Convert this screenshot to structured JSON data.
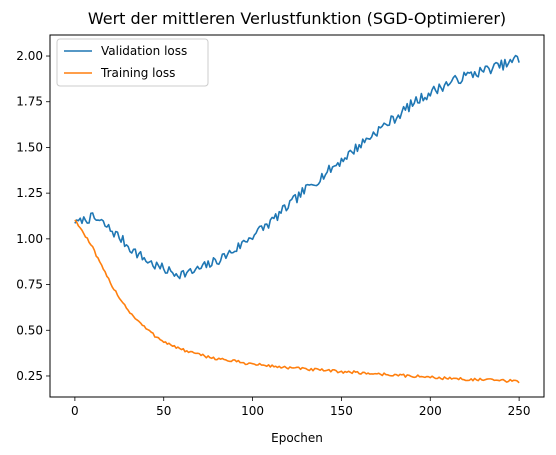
{
  "chart_data": {
    "type": "line",
    "title": "Wert der mittleren Verlustfunktion (SGD-Optimierer)",
    "xlabel": "Epochen",
    "ylabel": "",
    "xlim": [
      -14,
      264
    ],
    "ylim": [
      0.135,
      2.115
    ],
    "xticks": [
      0,
      50,
      100,
      150,
      200,
      250
    ],
    "yticks": [
      0.25,
      0.5,
      0.75,
      1.0,
      1.25,
      1.5,
      1.75,
      2.0
    ],
    "xtick_labels": [
      "0",
      "50",
      "100",
      "150",
      "200",
      "250"
    ],
    "ytick_labels": [
      "0.25",
      "0.50",
      "0.75",
      "1.00",
      "1.25",
      "1.50",
      "1.75",
      "2.00"
    ],
    "grid": false,
    "legend_position": "top-left",
    "series": [
      {
        "name": "Validation loss",
        "color": "#1f77b4",
        "anchors": [
          [
            0,
            1.09
          ],
          [
            5,
            1.105
          ],
          [
            10,
            1.115
          ],
          [
            15,
            1.09
          ],
          [
            20,
            1.05
          ],
          [
            25,
            1.01
          ],
          [
            30,
            0.96
          ],
          [
            35,
            0.92
          ],
          [
            40,
            0.885
          ],
          [
            45,
            0.855
          ],
          [
            50,
            0.835
          ],
          [
            55,
            0.815
          ],
          [
            60,
            0.81
          ],
          [
            65,
            0.815
          ],
          [
            70,
            0.835
          ],
          [
            80,
            0.88
          ],
          [
            90,
            0.94
          ],
          [
            100,
            1.02
          ],
          [
            110,
            1.09
          ],
          [
            120,
            1.18
          ],
          [
            130,
            1.27
          ],
          [
            140,
            1.35
          ],
          [
            150,
            1.43
          ],
          [
            160,
            1.51
          ],
          [
            170,
            1.59
          ],
          [
            180,
            1.66
          ],
          [
            190,
            1.74
          ],
          [
            200,
            1.8
          ],
          [
            210,
            1.85
          ],
          [
            220,
            1.89
          ],
          [
            230,
            1.92
          ],
          [
            240,
            1.95
          ],
          [
            245,
            1.96
          ],
          [
            248,
            1.99
          ],
          [
            250,
            1.965
          ]
        ],
        "noise": 0.028
      },
      {
        "name": "Training loss",
        "color": "#ff7f0e",
        "anchors": [
          [
            0,
            1.105
          ],
          [
            5,
            1.03
          ],
          [
            10,
            0.95
          ],
          [
            15,
            0.85
          ],
          [
            20,
            0.76
          ],
          [
            25,
            0.68
          ],
          [
            30,
            0.61
          ],
          [
            35,
            0.555
          ],
          [
            40,
            0.51
          ],
          [
            45,
            0.47
          ],
          [
            50,
            0.44
          ],
          [
            55,
            0.415
          ],
          [
            60,
            0.395
          ],
          [
            70,
            0.365
          ],
          [
            80,
            0.345
          ],
          [
            90,
            0.33
          ],
          [
            100,
            0.315
          ],
          [
            120,
            0.295
          ],
          [
            140,
            0.28
          ],
          [
            160,
            0.268
          ],
          [
            180,
            0.255
          ],
          [
            200,
            0.243
          ],
          [
            220,
            0.232
          ],
          [
            240,
            0.225
          ],
          [
            250,
            0.22
          ]
        ],
        "noise": 0.008
      }
    ]
  }
}
